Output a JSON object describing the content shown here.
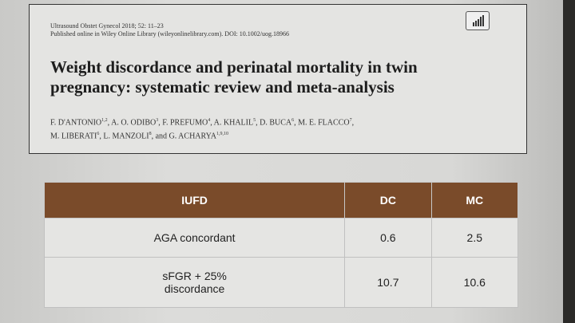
{
  "header": {
    "citation": "Ultrasound Obstet Gynecol 2018; 52: 11–23",
    "published": "Published online in Wiley Online Library (wileyonlinelibrary.com). DOI: 10.1002/uog.18966",
    "title": "Weight discordance and perinatal mortality in twin pregnancy: systematic review and meta-analysis",
    "separator": ",",
    "conjunction": "and",
    "author_lines": [
      [
        {
          "name": "F. D'ANTONIO",
          "sup": "1,2"
        },
        {
          "name": "A. O. ODIBO",
          "sup": "3"
        },
        {
          "name": "F. PREFUMO",
          "sup": "4"
        },
        {
          "name": "A. KHALIL",
          "sup": "5"
        },
        {
          "name": "D. BUCA",
          "sup": "6"
        },
        {
          "name": "M. E. FLACCO",
          "sup": "7"
        }
      ],
      [
        {
          "name": "M. LIBERATI",
          "sup": "6"
        },
        {
          "name": "L. MANZOLI",
          "sup": "8"
        },
        {
          "name": "G. ACHARYA",
          "sup": "1,9,10"
        }
      ]
    ]
  },
  "table": {
    "columns": [
      "IUFD",
      "DC",
      "MC"
    ],
    "rows": [
      [
        "AGA concordant",
        "0.6",
        "2.5"
      ],
      [
        "sFGR + 25%\ndiscordance",
        "10.7",
        "10.6"
      ]
    ]
  }
}
